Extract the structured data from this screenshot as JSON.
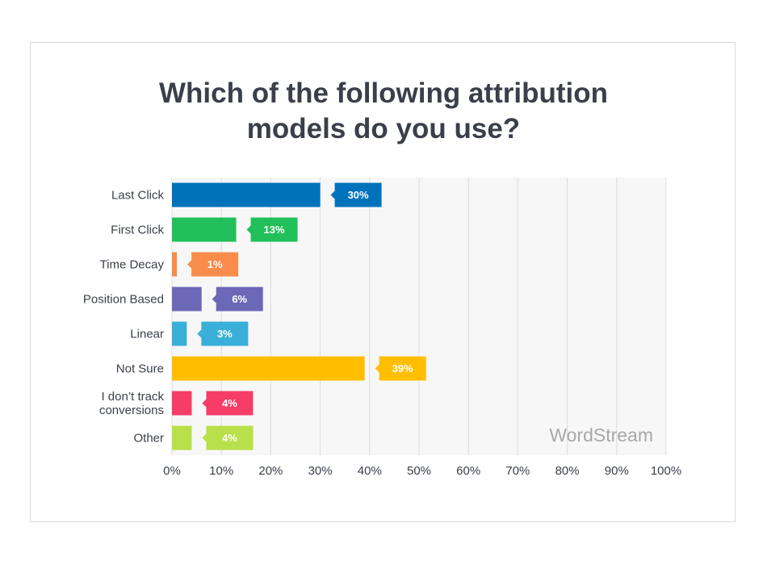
{
  "chart_data": {
    "type": "bar",
    "orientation": "horizontal",
    "title": "Which of the following attribution models do you use?",
    "categories": [
      "Last Click",
      "First Click",
      "Time Decay",
      "Position Based",
      "Linear",
      "Not Sure",
      "I don’t track conversions",
      "Other"
    ],
    "values": [
      30,
      13,
      1,
      6,
      3,
      39,
      4,
      4
    ],
    "value_labels": [
      "30%",
      "13%",
      "1%",
      "6%",
      "3%",
      "39%",
      "4%",
      "4%"
    ],
    "colors": [
      "#0072bc",
      "#22c05a",
      "#f98c4a",
      "#6b68b8",
      "#3aafd9",
      "#ffbe00",
      "#f53d68",
      "#b8e04a"
    ],
    "xlim": [
      0,
      100
    ],
    "xticks": [
      {
        "value": 0,
        "label": "0%"
      },
      {
        "value": 10,
        "label": "10%"
      },
      {
        "value": 20,
        "label": "20%"
      },
      {
        "value": 30,
        "label": "30%"
      },
      {
        "value": 40,
        "label": "40%"
      },
      {
        "value": 50,
        "label": "50%"
      },
      {
        "value": 60,
        "label": "60%"
      },
      {
        "value": 70,
        "label": "70%"
      },
      {
        "value": 80,
        "label": "80%"
      },
      {
        "value": 90,
        "label": "90%"
      },
      {
        "value": 100,
        "label": "100%"
      }
    ],
    "grid": true,
    "watermark": "WordStream"
  }
}
